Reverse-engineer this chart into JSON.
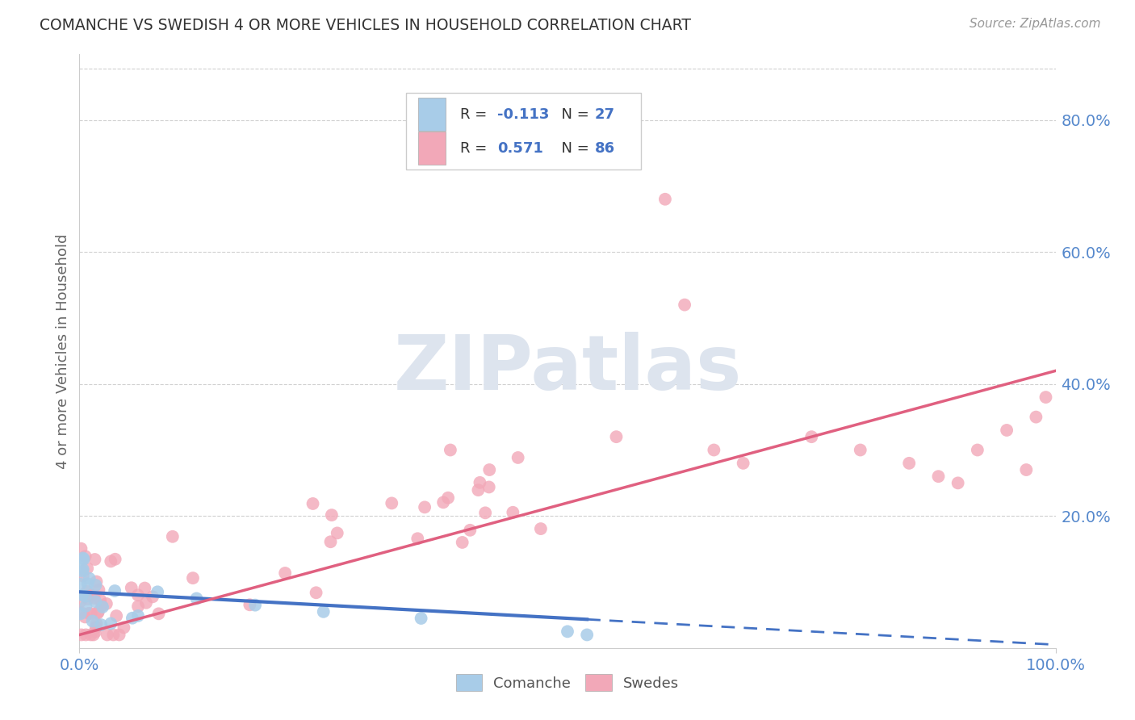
{
  "title": "COMANCHE VS SWEDISH 4 OR MORE VEHICLES IN HOUSEHOLD CORRELATION CHART",
  "source": "Source: ZipAtlas.com",
  "ylabel": "4 or more Vehicles in Household",
  "legend_label1": "Comanche",
  "legend_label2": "Swedes",
  "R1": -0.113,
  "N1": 27,
  "R2": 0.571,
  "N2": 86,
  "color_comanche": "#a8cce8",
  "color_swedes": "#f2a8b8",
  "color_line_comanche": "#4472c4",
  "color_line_swedes": "#e06080",
  "background_color": "#ffffff",
  "watermark": "ZIPatlas",
  "xlim": [
    0.0,
    1.0
  ],
  "ylim": [
    0.0,
    0.9
  ],
  "right_yticks": [
    0.2,
    0.4,
    0.6,
    0.8
  ],
  "right_yticklabels": [
    "20.0%",
    "40.0%",
    "60.0%",
    "80.0%"
  ]
}
